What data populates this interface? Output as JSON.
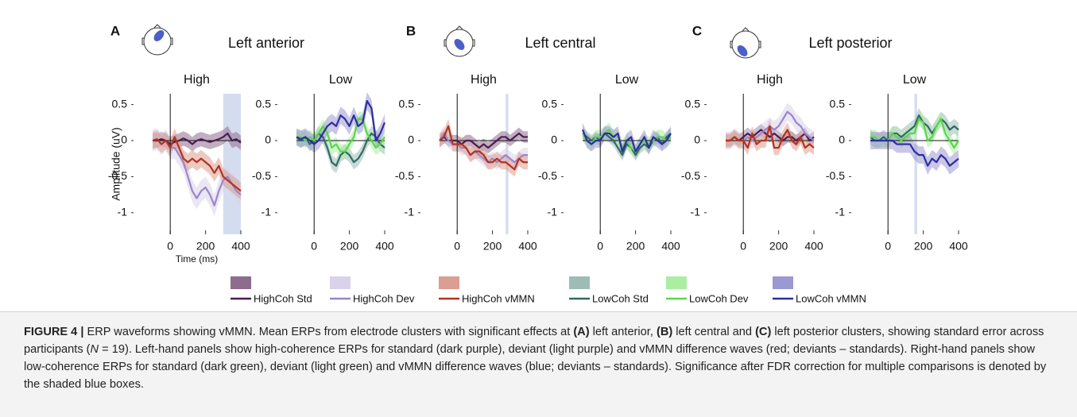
{
  "panels": [
    {
      "letter": "A",
      "region": "Left anterior"
    },
    {
      "letter": "B",
      "region": "Left central"
    },
    {
      "letter": "C",
      "region": "Left posterior"
    }
  ],
  "chart_data": [
    {
      "type": "line",
      "title": "High",
      "ylabel": "Amplitude (uV)",
      "xlabel": "Time (ms)",
      "x": [
        -100,
        -75,
        -50,
        -25,
        0,
        25,
        50,
        75,
        100,
        125,
        150,
        175,
        200,
        225,
        250,
        275,
        300,
        325,
        350,
        375,
        400
      ],
      "xlim": [
        -100,
        400
      ],
      "ylim": [
        -1.3,
        0.65
      ],
      "xticks": [
        0,
        200,
        400
      ],
      "yticks": [
        -1,
        -0.5,
        0,
        0.5
      ],
      "significance": [
        [
          300,
          400
        ]
      ],
      "series": [
        {
          "name": "HighCoh Std",
          "color": "#4a1d4d",
          "band_color": "#8e6c8e",
          "error": 0.1,
          "values": [
            0,
            0,
            0.02,
            0,
            -0.05,
            -0.02,
            0,
            0.03,
            0,
            -0.05,
            0,
            0.02,
            0,
            -0.02,
            0,
            0.02,
            0.05,
            0.1,
            0,
            0.02,
            -0.03
          ]
        },
        {
          "name": "HighCoh Dev",
          "color": "#9a86c8",
          "band_color": "#d9d2ea",
          "error": 0.15,
          "values": [
            0,
            0.02,
            -0.05,
            0,
            -0.1,
            -0.1,
            -0.2,
            -0.3,
            -0.5,
            -0.7,
            -0.8,
            -0.7,
            -0.65,
            -0.75,
            -0.9,
            -0.7,
            -0.55,
            -0.5,
            -0.6,
            -0.7,
            -0.75
          ]
        },
        {
          "name": "HighCoh vMMN",
          "color": "#b3321e",
          "band_color": "#dc9e90",
          "error": 0.12,
          "values": [
            0,
            0.02,
            -0.05,
            0,
            -0.1,
            0.05,
            -0.1,
            -0.25,
            -0.3,
            -0.25,
            -0.3,
            -0.25,
            -0.3,
            -0.35,
            -0.45,
            -0.35,
            -0.5,
            -0.55,
            -0.6,
            -0.65,
            -0.7
          ]
        }
      ]
    },
    {
      "type": "line",
      "title": "Low",
      "x": [
        -100,
        -75,
        -50,
        -25,
        0,
        25,
        50,
        75,
        100,
        125,
        150,
        175,
        200,
        225,
        250,
        275,
        300,
        325,
        350,
        375,
        400
      ],
      "xlim": [
        -100,
        400
      ],
      "ylim": [
        -1.3,
        0.65
      ],
      "xticks": [
        0,
        200,
        400
      ],
      "yticks": [
        -1,
        -0.5,
        0,
        0.5
      ],
      "series": [
        {
          "name": "LowCoh Std",
          "color": "#2d6b5f",
          "band_color": "#9dbcb6",
          "error": 0.1,
          "values": [
            0.05,
            0,
            0.05,
            -0.05,
            0,
            0.1,
            0.05,
            -0.1,
            -0.3,
            -0.35,
            -0.2,
            -0.15,
            -0.2,
            -0.3,
            -0.25,
            -0.15,
            0,
            0.1,
            0.05,
            -0.05,
            -0.1
          ]
        },
        {
          "name": "LowCoh Dev",
          "color": "#5dd44d",
          "band_color": "#aaeea2",
          "error": 0.1,
          "values": [
            0.05,
            0.05,
            0,
            0.05,
            0,
            0.1,
            0.2,
            0.1,
            -0.1,
            -0.05,
            -0.15,
            -0.15,
            -0.05,
            0.05,
            0.3,
            0.3,
            0.1,
            0,
            -0.1,
            -0.05,
            0.05
          ]
        },
        {
          "name": "LowCoh vMMN",
          "color": "#2e2d9e",
          "band_color": "#9c98d2",
          "error": 0.12,
          "values": [
            0.05,
            0.02,
            0.05,
            0,
            -0.05,
            0,
            0.1,
            0.2,
            0.25,
            0.2,
            0.35,
            0.3,
            0.2,
            0.35,
            0.2,
            0.25,
            0.55,
            0.45,
            0,
            0.1,
            0.25
          ]
        }
      ]
    },
    {
      "type": "line",
      "title": "High",
      "x": [
        -100,
        -75,
        -50,
        -25,
        0,
        25,
        50,
        75,
        100,
        125,
        150,
        175,
        200,
        225,
        250,
        275,
        300,
        325,
        350,
        375,
        400
      ],
      "xlim": [
        -100,
        400
      ],
      "ylim": [
        -1.3,
        0.65
      ],
      "xticks": [
        0,
        200,
        400
      ],
      "yticks": [
        -1,
        -0.5,
        0,
        0.5
      ],
      "significance": [
        [
          275,
          290
        ]
      ],
      "series": [
        {
          "name": "HighCoh Std",
          "color": "#4a1d4d",
          "band_color": "#8e6c8e",
          "error": 0.08,
          "values": [
            0,
            0.05,
            0,
            0,
            0,
            -0.05,
            0,
            0,
            -0.05,
            -0.1,
            -0.05,
            -0.1,
            -0.05,
            0,
            0.05,
            0.05,
            0,
            0.05,
            0.1,
            0.05,
            0.05
          ]
        },
        {
          "name": "HighCoh Dev",
          "color": "#9a86c8",
          "band_color": "#d9d2ea",
          "error": 0.1,
          "values": [
            0,
            0.1,
            0,
            -0.05,
            -0.05,
            -0.1,
            -0.1,
            -0.2,
            -0.15,
            -0.2,
            -0.25,
            -0.3,
            -0.25,
            -0.3,
            -0.25,
            -0.2,
            -0.25,
            -0.3,
            -0.25,
            -0.2,
            -0.2
          ]
        },
        {
          "name": "HighCoh vMMN",
          "color": "#b3321e",
          "band_color": "#dc9e90",
          "error": 0.1,
          "values": [
            0,
            0.05,
            0.2,
            -0.05,
            -0.05,
            -0.05,
            -0.1,
            -0.2,
            -0.15,
            -0.15,
            -0.2,
            -0.3,
            -0.3,
            -0.25,
            -0.3,
            -0.3,
            -0.35,
            -0.4,
            -0.25,
            -0.3,
            -0.3
          ]
        }
      ]
    },
    {
      "type": "line",
      "title": "Low",
      "x": [
        -100,
        -75,
        -50,
        -25,
        0,
        25,
        50,
        75,
        100,
        125,
        150,
        175,
        200,
        225,
        250,
        275,
        300,
        325,
        350,
        375,
        400
      ],
      "xlim": [
        -100,
        400
      ],
      "ylim": [
        -1.3,
        0.65
      ],
      "xticks": [
        0,
        200,
        400
      ],
      "yticks": [
        -1,
        -0.5,
        0,
        0.5
      ],
      "series": [
        {
          "name": "LowCoh Std",
          "color": "#2d6b5f",
          "band_color": "#9dbcb6",
          "error": 0.08,
          "values": [
            0.1,
            0.05,
            0,
            0.05,
            0,
            0.1,
            0.05,
            0,
            -0.1,
            -0.2,
            -0.05,
            -0.1,
            -0.2,
            -0.1,
            -0.05,
            -0.1,
            0,
            0.05,
            -0.05,
            0.05,
            0.1
          ]
        },
        {
          "name": "LowCoh Dev",
          "color": "#5dd44d",
          "band_color": "#aaeea2",
          "error": 0.1,
          "values": [
            0.1,
            0,
            -0.05,
            0.05,
            0.05,
            0.1,
            0.15,
            0.05,
            0.05,
            -0.1,
            0,
            -0.1,
            -0.15,
            -0.05,
            0,
            -0.05,
            0,
            0.05,
            0.05,
            0,
            0.05
          ]
        },
        {
          "name": "LowCoh vMMN",
          "color": "#2e2d9e",
          "band_color": "#9c98d2",
          "error": 0.1,
          "values": [
            0.15,
            0,
            -0.05,
            0,
            0,
            0.1,
            0.1,
            0.05,
            0.1,
            -0.15,
            0,
            0.05,
            -0.15,
            -0.05,
            0.05,
            -0.1,
            0.05,
            0,
            -0.05,
            0,
            0.1
          ]
        }
      ]
    },
    {
      "type": "line",
      "title": "High",
      "x": [
        -100,
        -75,
        -50,
        -25,
        0,
        25,
        50,
        75,
        100,
        125,
        150,
        175,
        200,
        225,
        250,
        275,
        300,
        325,
        350,
        375,
        400
      ],
      "xlim": [
        -100,
        400
      ],
      "ylim": [
        -1.3,
        0.65
      ],
      "xticks": [
        0,
        200,
        400
      ],
      "yticks": [
        -1,
        -0.5,
        0,
        0.5
      ],
      "series": [
        {
          "name": "HighCoh Std",
          "color": "#4a1d4d",
          "band_color": "#8e6c8e",
          "error": 0.08,
          "values": [
            0,
            0,
            0.05,
            0,
            0.05,
            0.1,
            0.05,
            0.1,
            0.15,
            0.1,
            0.05,
            0.1,
            0.05,
            0,
            0.05,
            0.05,
            0,
            0.05,
            0.1,
            0,
            0.05
          ]
        },
        {
          "name": "HighCoh Dev",
          "color": "#9a86c8",
          "band_color": "#d9d2ea",
          "error": 0.12,
          "values": [
            0,
            0,
            0.05,
            0,
            0,
            0.05,
            0,
            0.05,
            0.1,
            0.15,
            0.2,
            0.15,
            0.2,
            0.3,
            0.4,
            0.35,
            0.25,
            0.2,
            0.1,
            0.05,
            0
          ]
        },
        {
          "name": "HighCoh vMMN",
          "color": "#b3321e",
          "band_color": "#dc9e90",
          "error": 0.1,
          "values": [
            0,
            0,
            0.05,
            0,
            0,
            -0.1,
            0.1,
            -0.05,
            0,
            0,
            0.2,
            -0.1,
            -0.1,
            0.05,
            0.15,
            0,
            -0.05,
            0.05,
            -0.1,
            -0.05,
            -0.1
          ]
        }
      ]
    },
    {
      "type": "line",
      "title": "Low",
      "x": [
        -100,
        -75,
        -50,
        -25,
        0,
        25,
        50,
        75,
        100,
        125,
        150,
        175,
        200,
        225,
        250,
        275,
        300,
        325,
        350,
        375,
        400
      ],
      "xlim": [
        -100,
        400
      ],
      "ylim": [
        -1.3,
        0.65
      ],
      "xticks": [
        0,
        200,
        400
      ],
      "yticks": [
        -1,
        -0.5,
        0,
        0.5
      ],
      "significance": [
        [
          150,
          165
        ]
      ],
      "series": [
        {
          "name": "LowCoh Std",
          "color": "#2d6b5f",
          "band_color": "#9dbcb6",
          "error": 0.1,
          "values": [
            0.05,
            0,
            0,
            0.05,
            0,
            0.1,
            0.1,
            0.05,
            0.1,
            0.15,
            0.2,
            0.35,
            0.25,
            0.2,
            0.1,
            0.2,
            0.3,
            0.25,
            0.15,
            0.2,
            0.15
          ]
        },
        {
          "name": "LowCoh Dev",
          "color": "#5dd44d",
          "band_color": "#aaeea2",
          "error": 0.1,
          "values": [
            0.05,
            0.05,
            0,
            0,
            0,
            0.1,
            0.05,
            0,
            0.05,
            0.1,
            0.1,
            0.3,
            0.25,
            0,
            0.05,
            0.2,
            0.3,
            0.1,
            0,
            -0.1,
            0
          ]
        },
        {
          "name": "LowCoh vMMN",
          "color": "#2e2d9e",
          "band_color": "#9c98d2",
          "error": 0.12,
          "values": [
            0,
            0,
            0,
            0,
            0,
            0,
            -0.05,
            -0.05,
            -0.05,
            -0.05,
            -0.15,
            -0.2,
            -0.2,
            -0.35,
            -0.25,
            -0.3,
            -0.2,
            -0.25,
            -0.35,
            -0.3,
            -0.25
          ]
        }
      ]
    }
  ],
  "caption": [
    {
      "text": "FIGURE 4 | ",
      "style": "bold"
    },
    {
      "text": "ERP waveforms showing vMMN. Mean ERPs from electrode clusters with significant effects at "
    },
    {
      "text": "(A)",
      "style": "bold"
    },
    {
      "text": " left anterior, "
    },
    {
      "text": "(B)",
      "style": "bold"
    },
    {
      "text": " left central and "
    },
    {
      "text": "(C)",
      "style": "bold"
    },
    {
      "text": " left posterior clusters, showing standard error across participants ("
    },
    {
      "text": "N",
      "style": "italic"
    },
    {
      "text": " = 19). Left-hand panels show high-coherence ERPs for standard (dark purple), deviant (light purple) and vMMN difference waves (red; deviants – standards). Right-hand panels show low-coherence ERPs for standard (dark green), deviant (light green) and vMMN difference waves (blue; deviants – standards). Significance after FDR correction for multiple comparisons is denoted by the shaded blue boxes."
    }
  ]
}
